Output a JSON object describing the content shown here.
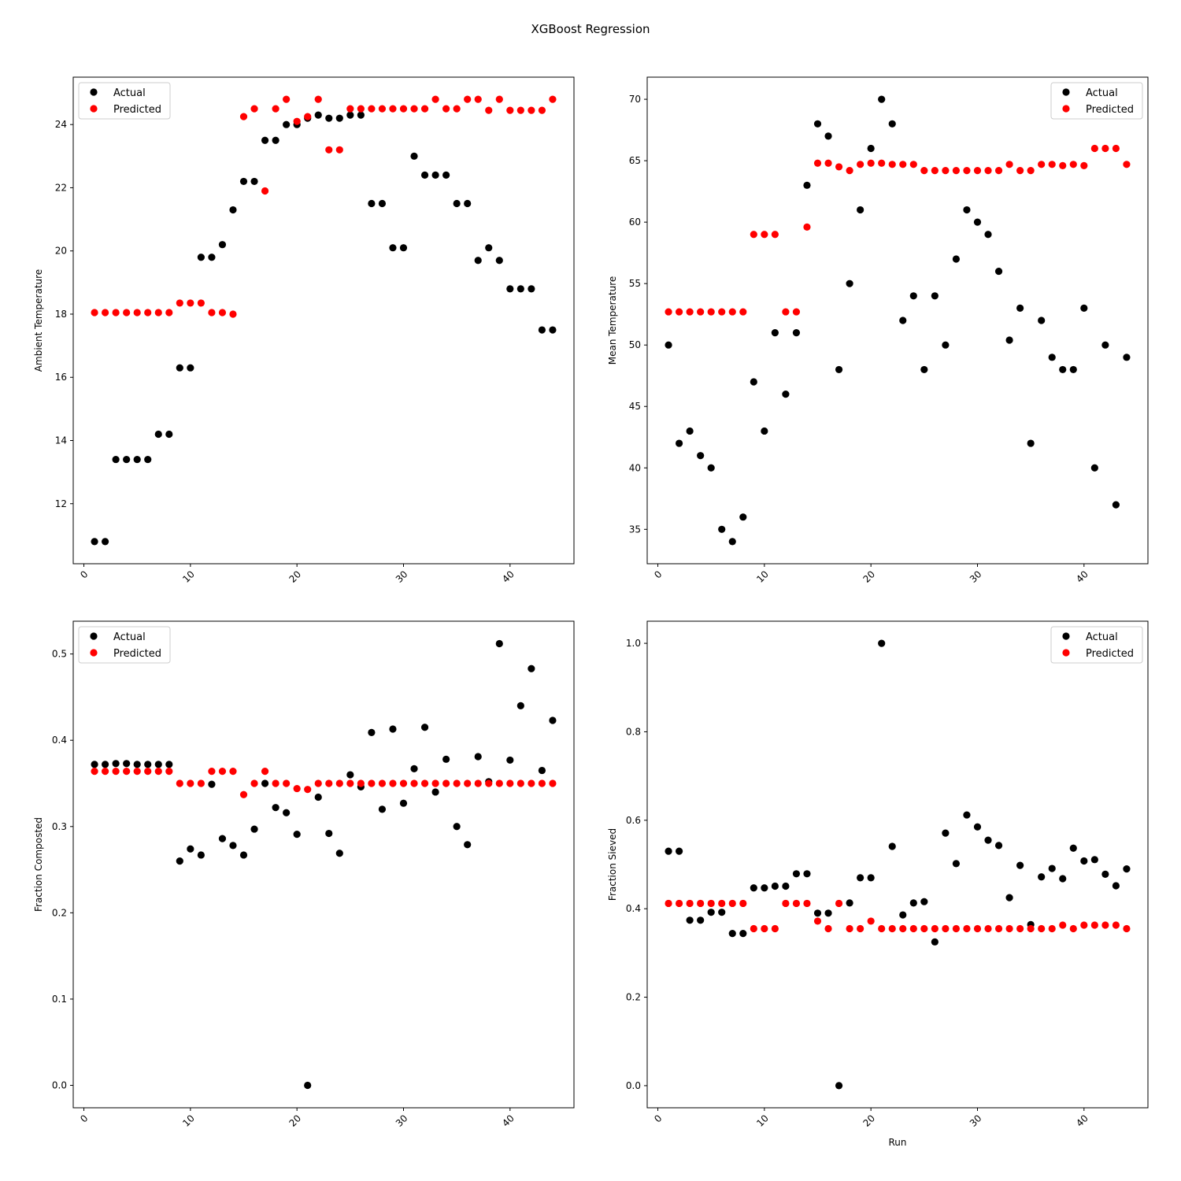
{
  "figure": {
    "suptitle": "XGBoost Regression"
  },
  "chart_data": [
    {
      "type": "scatter",
      "xlabel": "",
      "ylabel": "Ambient Temperature",
      "xlim": [
        -1,
        46
      ],
      "ylim": [
        10.1,
        25.5
      ],
      "xticks": [
        0,
        10,
        20,
        30,
        40
      ],
      "yticks": [
        12,
        14,
        16,
        18,
        20,
        22,
        24
      ],
      "legend": "top-left",
      "x": [
        1,
        2,
        3,
        4,
        5,
        6,
        7,
        8,
        9,
        10,
        11,
        12,
        13,
        14,
        15,
        16,
        17,
        18,
        19,
        20,
        21,
        22,
        23,
        24,
        25,
        26,
        27,
        28,
        29,
        30,
        31,
        32,
        33,
        34,
        35,
        36,
        37,
        38,
        39,
        40,
        41,
        42,
        43,
        44
      ],
      "series": [
        {
          "name": "Actual",
          "color": "#000000",
          "values": [
            10.8,
            10.8,
            13.4,
            13.4,
            13.4,
            13.4,
            14.2,
            14.2,
            16.3,
            16.3,
            19.8,
            19.8,
            20.2,
            21.3,
            22.2,
            22.2,
            23.5,
            23.5,
            24.0,
            24.0,
            24.2,
            24.3,
            24.2,
            24.2,
            24.3,
            24.3,
            21.5,
            21.5,
            20.1,
            20.1,
            23.0,
            22.4,
            22.4,
            22.4,
            21.5,
            21.5,
            19.7,
            20.1,
            19.7,
            18.8,
            18.8,
            18.8,
            17.5,
            17.5
          ]
        },
        {
          "name": "Predicted",
          "color": "#ff0000",
          "values": [
            18.05,
            18.05,
            18.05,
            18.05,
            18.05,
            18.05,
            18.05,
            18.05,
            18.35,
            18.35,
            18.35,
            18.05,
            18.05,
            18.0,
            24.25,
            24.5,
            21.9,
            24.5,
            24.8,
            24.1,
            24.25,
            24.8,
            23.2,
            23.2,
            24.5,
            24.5,
            24.5,
            24.5,
            24.5,
            24.5,
            24.5,
            24.5,
            24.8,
            24.5,
            24.5,
            24.8,
            24.8,
            24.45,
            24.8,
            24.45,
            24.45,
            24.45,
            24.45,
            24.8
          ]
        }
      ]
    },
    {
      "type": "scatter",
      "xlabel": "",
      "ylabel": "Mean Temperature",
      "xlim": [
        -1,
        46
      ],
      "ylim": [
        32.2,
        71.8
      ],
      "xticks": [
        0,
        10,
        20,
        30,
        40
      ],
      "yticks": [
        35,
        40,
        45,
        50,
        55,
        60,
        65,
        70
      ],
      "legend": "top-right",
      "x": [
        1,
        2,
        3,
        4,
        5,
        6,
        7,
        8,
        9,
        10,
        11,
        12,
        13,
        14,
        15,
        16,
        17,
        18,
        19,
        20,
        21,
        22,
        23,
        24,
        25,
        26,
        27,
        28,
        29,
        30,
        31,
        32,
        33,
        34,
        35,
        36,
        37,
        38,
        39,
        40,
        41,
        42,
        43,
        44
      ],
      "series": [
        {
          "name": "Actual",
          "color": "#000000",
          "values": [
            50,
            42,
            43,
            41,
            40,
            35,
            34,
            36,
            47,
            43,
            51,
            46,
            51,
            63,
            68,
            67,
            48,
            55,
            61,
            66,
            70,
            68,
            52,
            54,
            48,
            54,
            50,
            57,
            61,
            60,
            59,
            56,
            50.4,
            53,
            42,
            52,
            49,
            48,
            48,
            53,
            40,
            50,
            37,
            49
          ]
        },
        {
          "name": "Predicted",
          "color": "#ff0000",
          "values": [
            52.7,
            52.7,
            52.7,
            52.7,
            52.7,
            52.7,
            52.7,
            52.7,
            59,
            59,
            59,
            52.7,
            52.7,
            59.6,
            64.8,
            64.8,
            64.5,
            64.2,
            64.7,
            64.8,
            64.8,
            64.7,
            64.7,
            64.7,
            64.2,
            64.2,
            64.2,
            64.2,
            64.2,
            64.2,
            64.2,
            64.2,
            64.7,
            64.2,
            64.2,
            64.7,
            64.7,
            64.6,
            64.7,
            64.6,
            66,
            66,
            66,
            64.7
          ]
        }
      ]
    },
    {
      "type": "scatter",
      "xlabel": "",
      "ylabel": "Fraction Composted",
      "xlim": [
        -1,
        46
      ],
      "ylim": [
        -0.026,
        0.538
      ],
      "xticks": [
        0,
        10,
        20,
        30,
        40
      ],
      "yticks": [
        0.0,
        0.1,
        0.2,
        0.3,
        0.4,
        0.5
      ],
      "legend": "top-left",
      "x": [
        1,
        2,
        3,
        4,
        5,
        6,
        7,
        8,
        9,
        10,
        11,
        12,
        13,
        14,
        15,
        16,
        17,
        18,
        19,
        20,
        21,
        22,
        23,
        24,
        25,
        26,
        27,
        28,
        29,
        30,
        31,
        32,
        33,
        34,
        35,
        36,
        37,
        38,
        39,
        40,
        41,
        42,
        43,
        44
      ],
      "series": [
        {
          "name": "Actual",
          "color": "#000000",
          "values": [
            0.372,
            0.372,
            0.373,
            0.373,
            0.372,
            0.372,
            0.372,
            0.372,
            0.26,
            0.274,
            0.267,
            0.349,
            0.286,
            0.278,
            0.267,
            0.297,
            0.35,
            0.322,
            0.316,
            0.291,
            0.0,
            0.334,
            0.292,
            0.269,
            0.36,
            0.346,
            0.409,
            0.32,
            0.413,
            0.327,
            0.367,
            0.415,
            0.34,
            0.378,
            0.3,
            0.279,
            0.381,
            0.352,
            0.512,
            0.377,
            0.44,
            0.483,
            0.365,
            0.423
          ]
        },
        {
          "name": "Predicted",
          "color": "#ff0000",
          "values": [
            0.364,
            0.364,
            0.364,
            0.364,
            0.364,
            0.364,
            0.364,
            0.364,
            0.35,
            0.35,
            0.35,
            0.364,
            0.364,
            0.364,
            0.337,
            0.35,
            0.364,
            0.35,
            0.35,
            0.344,
            0.343,
            0.35,
            0.35,
            0.35,
            0.35,
            0.35,
            0.35,
            0.35,
            0.35,
            0.35,
            0.35,
            0.35,
            0.35,
            0.35,
            0.35,
            0.35,
            0.35,
            0.35,
            0.35,
            0.35,
            0.35,
            0.35,
            0.35,
            0.35
          ]
        }
      ]
    },
    {
      "type": "scatter",
      "xlabel": "Run",
      "ylabel": "Fraction Sieved",
      "xlim": [
        -1,
        46
      ],
      "ylim": [
        -0.05,
        1.05
      ],
      "xticks": [
        0,
        10,
        20,
        30,
        40
      ],
      "yticks": [
        0.0,
        0.2,
        0.4,
        0.6,
        0.8,
        1.0
      ],
      "legend": "top-right",
      "x": [
        1,
        2,
        3,
        4,
        5,
        6,
        7,
        8,
        9,
        10,
        11,
        12,
        13,
        14,
        15,
        16,
        17,
        18,
        19,
        20,
        21,
        22,
        23,
        24,
        25,
        26,
        27,
        28,
        29,
        30,
        31,
        32,
        33,
        34,
        35,
        36,
        37,
        38,
        39,
        40,
        41,
        42,
        43,
        44
      ],
      "series": [
        {
          "name": "Actual",
          "color": "#000000",
          "values": [
            0.53,
            0.53,
            0.374,
            0.374,
            0.392,
            0.392,
            0.344,
            0.344,
            0.447,
            0.447,
            0.451,
            0.451,
            0.479,
            0.479,
            0.39,
            0.39,
            0.0,
            0.413,
            0.47,
            0.47,
            1.0,
            0.541,
            0.386,
            0.413,
            0.416,
            0.325,
            0.571,
            0.502,
            0.612,
            0.585,
            0.555,
            0.543,
            0.425,
            0.498,
            0.364,
            0.472,
            0.491,
            0.468,
            0.537,
            0.508,
            0.511,
            0.478,
            0.452,
            0.49
          ]
        },
        {
          "name": "Predicted",
          "color": "#ff0000",
          "values": [
            0.412,
            0.412,
            0.412,
            0.412,
            0.412,
            0.412,
            0.412,
            0.412,
            0.355,
            0.355,
            0.355,
            0.412,
            0.412,
            0.412,
            0.372,
            0.355,
            0.412,
            0.355,
            0.355,
            0.372,
            0.355,
            0.355,
            0.355,
            0.355,
            0.355,
            0.355,
            0.355,
            0.355,
            0.355,
            0.355,
            0.355,
            0.355,
            0.355,
            0.355,
            0.355,
            0.355,
            0.355,
            0.363,
            0.355,
            0.363,
            0.363,
            0.363,
            0.363,
            0.355
          ]
        }
      ]
    }
  ]
}
